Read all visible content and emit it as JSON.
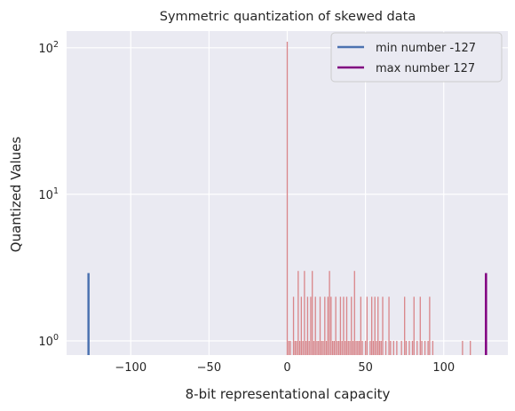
{
  "chart_data": {
    "type": "bar",
    "title": "Symmetric quantization of skewed data",
    "xlabel": "8-bit representational capacity",
    "ylabel": "Quantized Values",
    "xlim": [
      -141,
      141
    ],
    "ylim": [
      0.8,
      130
    ],
    "yscale": "log",
    "x_ticks": [
      {
        "value": -100,
        "label": "−100"
      },
      {
        "value": -50,
        "label": "−50"
      },
      {
        "value": 0,
        "label": "0"
      },
      {
        "value": 50,
        "label": "50"
      },
      {
        "value": 100,
        "label": "100"
      }
    ],
    "y_ticks": [
      {
        "value": 1,
        "base": "10",
        "exp": "0"
      },
      {
        "value": 10,
        "base": "10",
        "exp": "1"
      },
      {
        "value": 100,
        "base": "10",
        "exp": "2"
      }
    ],
    "grid": true,
    "legend_position": "top-right",
    "bar_color": "#d9868a",
    "bars": [
      {
        "x": 0,
        "y": 110
      },
      {
        "x": 1,
        "y": 1
      },
      {
        "x": 2,
        "y": 1
      },
      {
        "x": 4,
        "y": 2
      },
      {
        "x": 5,
        "y": 1
      },
      {
        "x": 6,
        "y": 1
      },
      {
        "x": 7,
        "y": 3
      },
      {
        "x": 8,
        "y": 1
      },
      {
        "x": 9,
        "y": 2
      },
      {
        "x": 10,
        "y": 1
      },
      {
        "x": 11,
        "y": 3
      },
      {
        "x": 12,
        "y": 1
      },
      {
        "x": 13,
        "y": 2
      },
      {
        "x": 14,
        "y": 1
      },
      {
        "x": 15,
        "y": 2
      },
      {
        "x": 16,
        "y": 3
      },
      {
        "x": 17,
        "y": 1
      },
      {
        "x": 18,
        "y": 2
      },
      {
        "x": 19,
        "y": 1
      },
      {
        "x": 20,
        "y": 1
      },
      {
        "x": 21,
        "y": 2
      },
      {
        "x": 22,
        "y": 1
      },
      {
        "x": 23,
        "y": 1
      },
      {
        "x": 24,
        "y": 2
      },
      {
        "x": 25,
        "y": 1
      },
      {
        "x": 26,
        "y": 2
      },
      {
        "x": 27,
        "y": 3
      },
      {
        "x": 28,
        "y": 2
      },
      {
        "x": 29,
        "y": 1
      },
      {
        "x": 30,
        "y": 1
      },
      {
        "x": 31,
        "y": 2
      },
      {
        "x": 32,
        "y": 1
      },
      {
        "x": 33,
        "y": 1
      },
      {
        "x": 34,
        "y": 2
      },
      {
        "x": 35,
        "y": 1
      },
      {
        "x": 36,
        "y": 2
      },
      {
        "x": 37,
        "y": 1
      },
      {
        "x": 38,
        "y": 2
      },
      {
        "x": 39,
        "y": 1
      },
      {
        "x": 40,
        "y": 1
      },
      {
        "x": 41,
        "y": 2
      },
      {
        "x": 42,
        "y": 1
      },
      {
        "x": 43,
        "y": 3
      },
      {
        "x": 44,
        "y": 1
      },
      {
        "x": 45,
        "y": 1
      },
      {
        "x": 46,
        "y": 1
      },
      {
        "x": 47,
        "y": 2
      },
      {
        "x": 48,
        "y": 1
      },
      {
        "x": 50,
        "y": 1
      },
      {
        "x": 51,
        "y": 2
      },
      {
        "x": 53,
        "y": 1
      },
      {
        "x": 54,
        "y": 2
      },
      {
        "x": 55,
        "y": 1
      },
      {
        "x": 56,
        "y": 2
      },
      {
        "x": 57,
        "y": 1
      },
      {
        "x": 58,
        "y": 2
      },
      {
        "x": 59,
        "y": 1
      },
      {
        "x": 60,
        "y": 1
      },
      {
        "x": 61,
        "y": 2
      },
      {
        "x": 63,
        "y": 1
      },
      {
        "x": 65,
        "y": 2
      },
      {
        "x": 66,
        "y": 1
      },
      {
        "x": 68,
        "y": 1
      },
      {
        "x": 70,
        "y": 1
      },
      {
        "x": 73,
        "y": 1
      },
      {
        "x": 75,
        "y": 2
      },
      {
        "x": 76,
        "y": 1
      },
      {
        "x": 78,
        "y": 1
      },
      {
        "x": 80,
        "y": 1
      },
      {
        "x": 81,
        "y": 2
      },
      {
        "x": 83,
        "y": 1
      },
      {
        "x": 85,
        "y": 2
      },
      {
        "x": 86,
        "y": 1
      },
      {
        "x": 88,
        "y": 1
      },
      {
        "x": 90,
        "y": 1
      },
      {
        "x": 91,
        "y": 2
      },
      {
        "x": 93,
        "y": 1
      },
      {
        "x": 112,
        "y": 1
      },
      {
        "x": 117,
        "y": 1
      },
      {
        "x": 127,
        "y": 2
      }
    ],
    "series": [
      {
        "name": "min number -127",
        "x": -127,
        "y": [
          0.8,
          2.9
        ],
        "color": "#4c72b0"
      },
      {
        "name": "max number 127",
        "x": 127,
        "y": [
          0.8,
          2.9
        ],
        "color": "#800080"
      }
    ]
  }
}
